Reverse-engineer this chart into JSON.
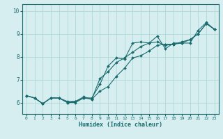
{
  "xlabel": "Humidex (Indice chaleur)",
  "ylabel": "",
  "bg_color": "#d6eef0",
  "grid_color": "#b0d8d8",
  "line_color": "#1a6b6e",
  "xlim": [
    -0.5,
    23.5
  ],
  "ylim": [
    5.5,
    10.3
  ],
  "xticks": [
    0,
    1,
    2,
    3,
    4,
    5,
    6,
    7,
    8,
    9,
    10,
    11,
    12,
    13,
    14,
    15,
    16,
    17,
    18,
    19,
    20,
    21,
    22,
    23
  ],
  "yticks": [
    6,
    7,
    8,
    9,
    10
  ],
  "line1": [
    6.3,
    6.2,
    5.95,
    6.2,
    6.2,
    6.05,
    6.05,
    6.2,
    6.2,
    6.8,
    7.6,
    7.95,
    7.9,
    8.6,
    8.65,
    8.6,
    8.9,
    8.35,
    8.6,
    8.6,
    8.6,
    9.15,
    9.5,
    9.2
  ],
  "line2": [
    6.3,
    6.2,
    5.95,
    6.2,
    6.2,
    6.0,
    6.05,
    6.25,
    6.15,
    7.05,
    7.35,
    7.75,
    7.95,
    8.2,
    8.45,
    8.6,
    8.65,
    8.5,
    8.55,
    8.6,
    8.75,
    9.0,
    9.45,
    9.2
  ],
  "line3": [
    6.3,
    6.2,
    5.95,
    6.2,
    6.2,
    6.0,
    6.0,
    6.2,
    6.15,
    6.5,
    6.7,
    7.15,
    7.5,
    7.95,
    8.05,
    8.25,
    8.5,
    8.55,
    8.55,
    8.65,
    8.75,
    9.0,
    9.45,
    9.2
  ]
}
